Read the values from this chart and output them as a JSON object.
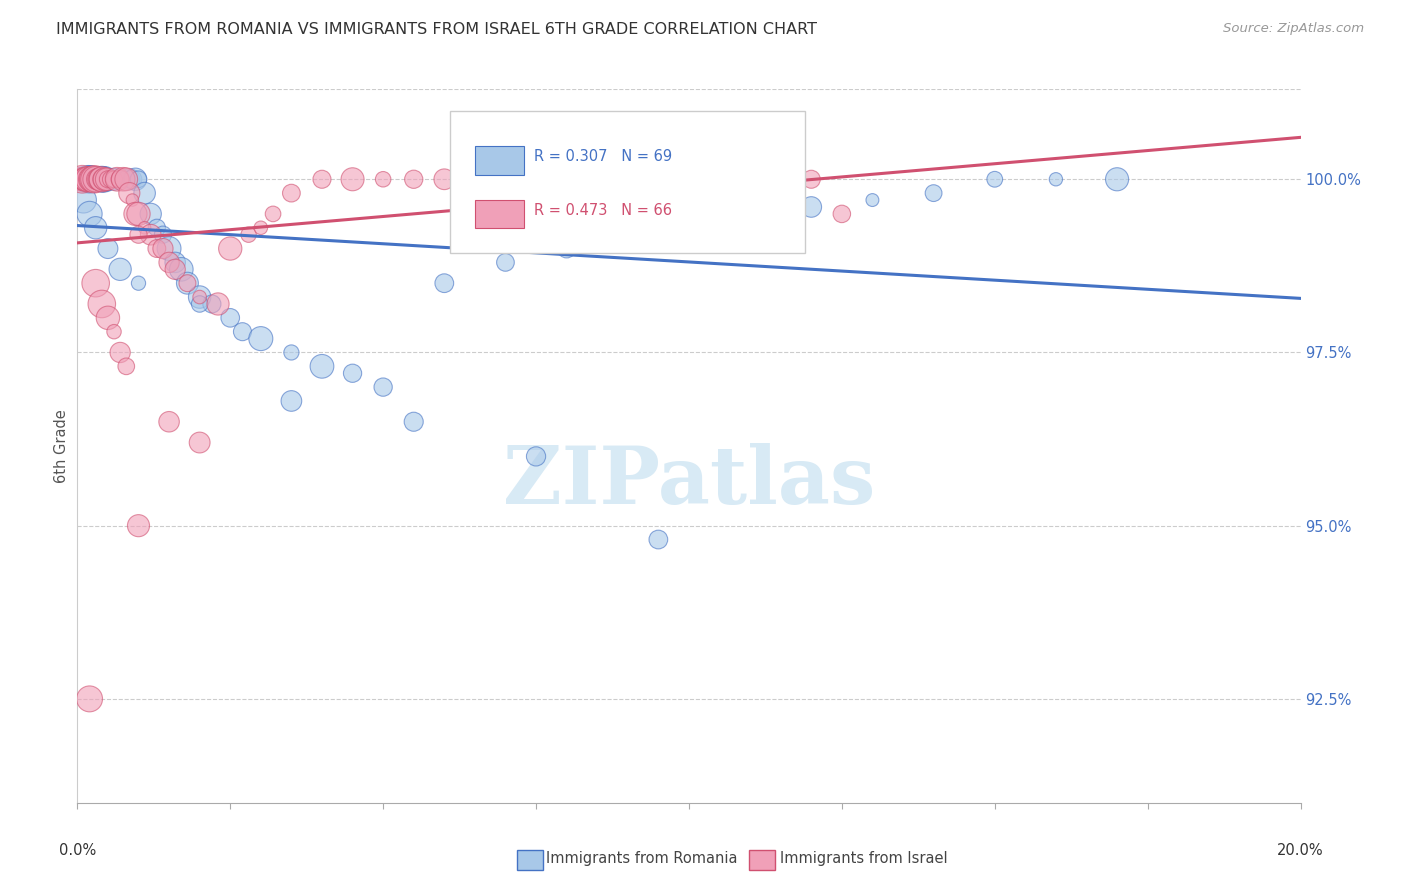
{
  "title": "IMMIGRANTS FROM ROMANIA VS IMMIGRANTS FROM ISRAEL 6TH GRADE CORRELATION CHART",
  "source": "Source: ZipAtlas.com",
  "ylabel": "6th Grade",
  "xlim": [
    0.0,
    20.0
  ],
  "ylim": [
    91.0,
    101.3
  ],
  "yticks": [
    92.5,
    95.0,
    97.5,
    100.0
  ],
  "ytick_labels": [
    "92.5%",
    "95.0%",
    "97.5%",
    "100.0%"
  ],
  "legend1_label": "R = 0.307   N = 69",
  "legend2_label": "R = 0.473   N = 66",
  "legend_romania_label": "Immigrants from Romania",
  "legend_israel_label": "Immigrants from Israel",
  "blue_fill": "#A8C8E8",
  "blue_edge": "#4472C4",
  "pink_fill": "#F0A0B8",
  "pink_edge": "#D05070",
  "blue_line": "#4472C4",
  "pink_line": "#D05070",
  "watermark_text": "ZIPatlas",
  "watermark_color": "#D8EAF5",
  "romania_x": [
    0.05,
    0.08,
    0.1,
    0.12,
    0.15,
    0.18,
    0.2,
    0.22,
    0.25,
    0.28,
    0.3,
    0.32,
    0.35,
    0.38,
    0.4,
    0.42,
    0.45,
    0.48,
    0.5,
    0.55,
    0.6,
    0.65,
    0.7,
    0.75,
    0.8,
    0.85,
    0.9,
    0.95,
    1.0,
    1.1,
    1.2,
    1.3,
    1.4,
    1.5,
    1.6,
    1.7,
    1.8,
    2.0,
    2.2,
    2.5,
    2.7,
    3.0,
    3.5,
    4.0,
    4.5,
    5.0,
    6.0,
    7.0,
    8.0,
    9.0,
    10.0,
    11.0,
    12.0,
    13.0,
    14.0,
    15.0,
    16.0,
    0.1,
    0.2,
    0.3,
    0.5,
    0.7,
    1.0,
    2.0,
    3.5,
    5.5,
    7.5,
    9.5,
    17.0
  ],
  "romania_y": [
    100.0,
    100.0,
    100.0,
    100.0,
    100.0,
    100.0,
    100.0,
    100.0,
    100.0,
    100.0,
    100.0,
    100.0,
    100.0,
    100.0,
    100.0,
    100.0,
    100.0,
    100.0,
    100.0,
    100.0,
    100.0,
    100.0,
    100.0,
    100.0,
    100.0,
    100.0,
    100.0,
    100.0,
    100.0,
    99.8,
    99.5,
    99.3,
    99.2,
    99.0,
    98.8,
    98.7,
    98.5,
    98.3,
    98.2,
    98.0,
    97.8,
    97.7,
    97.5,
    97.3,
    97.2,
    97.0,
    98.5,
    98.8,
    99.0,
    99.2,
    99.3,
    99.5,
    99.6,
    99.7,
    99.8,
    100.0,
    100.0,
    99.7,
    99.5,
    99.3,
    99.0,
    98.7,
    98.5,
    98.2,
    96.8,
    96.5,
    96.0,
    94.8,
    100.0
  ],
  "israel_x": [
    0.05,
    0.08,
    0.1,
    0.12,
    0.15,
    0.18,
    0.2,
    0.22,
    0.25,
    0.28,
    0.3,
    0.32,
    0.35,
    0.38,
    0.4,
    0.42,
    0.45,
    0.48,
    0.5,
    0.55,
    0.6,
    0.65,
    0.7,
    0.75,
    0.8,
    0.85,
    0.9,
    0.95,
    1.0,
    1.1,
    1.2,
    1.3,
    1.4,
    1.5,
    1.6,
    1.8,
    2.0,
    2.3,
    2.5,
    2.8,
    3.2,
    3.5,
    4.0,
    4.5,
    5.0,
    5.5,
    6.0,
    7.0,
    8.0,
    9.0,
    10.0,
    11.0,
    12.0,
    1.0,
    0.3,
    0.4,
    0.5,
    0.6,
    0.7,
    0.8,
    1.5,
    2.0,
    3.0,
    12.5,
    1.0,
    0.2
  ],
  "israel_y": [
    100.0,
    100.0,
    100.0,
    100.0,
    100.0,
    100.0,
    100.0,
    100.0,
    100.0,
    100.0,
    100.0,
    100.0,
    100.0,
    100.0,
    100.0,
    100.0,
    100.0,
    100.0,
    100.0,
    100.0,
    100.0,
    100.0,
    100.0,
    100.0,
    100.0,
    99.8,
    99.7,
    99.5,
    99.5,
    99.3,
    99.2,
    99.0,
    99.0,
    98.8,
    98.7,
    98.5,
    98.3,
    98.2,
    99.0,
    99.2,
    99.5,
    99.8,
    100.0,
    100.0,
    100.0,
    100.0,
    100.0,
    100.0,
    100.0,
    100.0,
    100.0,
    100.0,
    100.0,
    95.0,
    98.5,
    98.2,
    98.0,
    97.8,
    97.5,
    97.3,
    96.5,
    96.2,
    99.3,
    99.5,
    99.2,
    92.5
  ]
}
